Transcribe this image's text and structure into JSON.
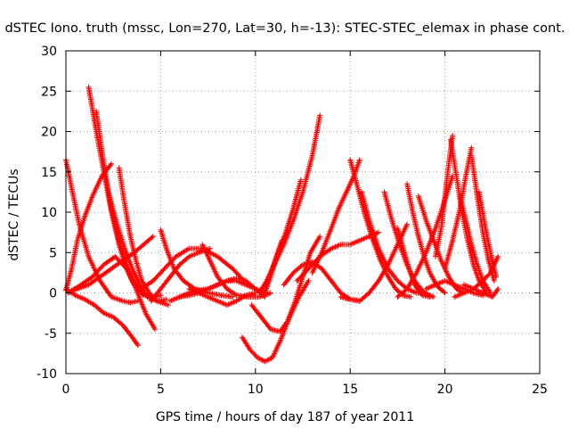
{
  "chart_data": {
    "type": "scatter",
    "title": "dSTEC Iono. truth (mssc, Lon=270, Lat=30, h=-13): STEC-STEC_elemax in phase cont.",
    "xlabel": "GPS time / hours of day 187 of year 2011",
    "ylabel": "dSTEC  / TECUs",
    "xlim": [
      0,
      25
    ],
    "ylim": [
      -10,
      30
    ],
    "xticks": [
      0,
      5,
      10,
      15,
      20,
      25
    ],
    "yticks": [
      -10,
      -5,
      0,
      5,
      10,
      15,
      20,
      25,
      30
    ],
    "grid": true,
    "marker": "+",
    "color": "#ff0000",
    "series": [
      {
        "x": [
          0.0,
          0.3,
          0.7,
          1.2,
          1.8,
          2.4,
          3.0,
          3.4,
          3.8
        ],
        "y": [
          16.5,
          13.0,
          8.5,
          4.5,
          1.5,
          -0.5,
          -1.0,
          -1.2,
          -1.0
        ]
      },
      {
        "x": [
          0.0,
          0.3,
          0.6,
          1.0,
          1.4,
          1.9,
          2.4
        ],
        "y": [
          0.3,
          3.0,
          6.5,
          9.5,
          12.0,
          14.5,
          16.0
        ]
      },
      {
        "x": [
          0.0,
          0.5,
          1.0,
          1.5,
          2.0,
          2.5,
          3.0,
          3.5,
          3.8
        ],
        "y": [
          0.5,
          -0.3,
          -0.8,
          -1.5,
          -2.5,
          -3.0,
          -4.0,
          -5.5,
          -6.5
        ]
      },
      {
        "x": [
          0.1,
          0.6,
          1.2,
          1.8,
          2.4,
          3.0,
          3.6,
          4.1,
          4.6
        ],
        "y": [
          0.0,
          0.5,
          1.0,
          2.0,
          3.0,
          4.0,
          5.0,
          6.0,
          7.0
        ]
      },
      {
        "x": [
          0.3,
          0.8,
          1.4,
          2.0,
          2.6,
          3.2,
          3.7,
          4.2,
          4.7
        ],
        "y": [
          0.3,
          1.0,
          2.0,
          3.5,
          4.5,
          3.0,
          0.5,
          -2.5,
          -4.5
        ]
      },
      {
        "x": [
          1.2,
          1.6,
          2.0,
          2.4,
          2.8,
          3.2,
          3.6,
          4.1,
          4.6,
          5.0
        ],
        "y": [
          25.5,
          20.0,
          15.0,
          10.0,
          6.0,
          3.0,
          1.0,
          -0.3,
          -0.5,
          -0.3
        ]
      },
      {
        "x": [
          1.6,
          2.0,
          2.4,
          2.8,
          3.2,
          3.6,
          4.0,
          4.5
        ],
        "y": [
          22.5,
          16.0,
          10.5,
          6.5,
          3.5,
          1.5,
          0.0,
          -0.5
        ]
      },
      {
        "x": [
          2.3,
          2.7,
          3.1,
          3.5,
          3.9,
          4.3,
          4.8,
          5.3
        ],
        "y": [
          12.0,
          8.5,
          5.5,
          3.0,
          1.0,
          -0.5,
          -1.0,
          -0.8
        ]
      },
      {
        "x": [
          2.8,
          3.1,
          3.4,
          3.7,
          4.0,
          4.4,
          4.8,
          5.4
        ],
        "y": [
          15.5,
          11.0,
          7.0,
          4.0,
          1.5,
          0.0,
          -1.0,
          -1.5
        ]
      },
      {
        "x": [
          4.0,
          4.6,
          5.2,
          5.8,
          6.5,
          7.2,
          8.0,
          8.8,
          9.4
        ],
        "y": [
          0.5,
          1.5,
          3.0,
          4.5,
          5.5,
          5.5,
          4.5,
          3.0,
          1.5
        ]
      },
      {
        "x": [
          4.5,
          5.0,
          5.5,
          6.0,
          6.5,
          7.0,
          7.6
        ],
        "y": [
          -1.0,
          0.5,
          2.0,
          3.5,
          4.5,
          5.0,
          5.5
        ]
      },
      {
        "x": [
          5.0,
          5.3,
          5.7,
          6.2,
          6.8,
          7.5,
          8.2,
          8.8
        ],
        "y": [
          7.8,
          5.5,
          3.0,
          1.5,
          0.5,
          0.0,
          -0.3,
          -0.5
        ]
      },
      {
        "x": [
          5.5,
          6.0,
          6.5,
          7.0,
          7.5,
          8.0,
          8.5,
          9.0,
          9.5,
          10.0,
          10.5
        ],
        "y": [
          -1.0,
          -0.5,
          0.0,
          0.3,
          0.5,
          1.0,
          1.5,
          1.5,
          1.0,
          0.5,
          0.0
        ]
      },
      {
        "x": [
          6.0,
          6.5,
          7.0,
          7.5,
          8.0,
          8.5,
          9.0,
          9.5,
          10.0,
          10.5
        ],
        "y": [
          -0.5,
          -0.3,
          0.0,
          0.5,
          1.0,
          1.5,
          1.8,
          1.5,
          0.5,
          -0.5
        ]
      },
      {
        "x": [
          7.2,
          7.6,
          8.0,
          8.5,
          9.0,
          9.6,
          10.2,
          10.8
        ],
        "y": [
          6.0,
          4.0,
          2.0,
          0.5,
          -0.3,
          -0.5,
          -0.5,
          0.0
        ]
      },
      {
        "x": [
          6.5,
          7.0,
          7.5,
          8.0,
          8.5,
          9.0,
          9.5,
          10.0
        ],
        "y": [
          0.5,
          0.0,
          -0.5,
          -1.0,
          -1.5,
          -1.0,
          -0.3,
          0.0
        ]
      },
      {
        "x": [
          9.3,
          9.7,
          10.1,
          10.5,
          10.9,
          11.3,
          11.8,
          12.3,
          12.8
        ],
        "y": [
          -5.5,
          -7.0,
          -8.0,
          -8.5,
          -8.0,
          -6.0,
          -3.0,
          -0.5,
          1.5
        ]
      },
      {
        "x": [
          9.8,
          10.3,
          10.8,
          11.3,
          11.7,
          12.1,
          12.5,
          12.9,
          13.4
        ],
        "y": [
          -1.5,
          -3.0,
          -4.5,
          -4.8,
          -3.5,
          -1.0,
          2.0,
          5.0,
          7.0
        ]
      },
      {
        "x": [
          10.2,
          10.6,
          11.0,
          11.5,
          12.0,
          12.5,
          13.0,
          13.4
        ],
        "y": [
          0.0,
          1.5,
          3.5,
          6.0,
          9.0,
          12.5,
          17.0,
          22.0
        ]
      },
      {
        "x": [
          10.4,
          10.8,
          11.2,
          11.6,
          12.0,
          12.4
        ],
        "y": [
          0.5,
          2.5,
          5.0,
          7.5,
          10.5,
          14.0
        ]
      },
      {
        "x": [
          10.5,
          10.8,
          11.1,
          11.4
        ],
        "y": [
          0.0,
          2.0,
          4.5,
          6.5
        ]
      },
      {
        "x": [
          11.5,
          12.0,
          12.5,
          13.0,
          13.5,
          14.0,
          14.5,
          15.0,
          15.5
        ],
        "y": [
          1.0,
          2.5,
          3.5,
          3.8,
          3.0,
          1.5,
          0.0,
          -0.8,
          -1.0
        ]
      },
      {
        "x": [
          12.2,
          12.8,
          13.4,
          14.0,
          14.5,
          15.0,
          15.5,
          16.0,
          16.5
        ],
        "y": [
          1.5,
          3.0,
          4.5,
          5.5,
          6.0,
          6.0,
          6.5,
          7.0,
          7.5
        ]
      },
      {
        "x": [
          13.0,
          13.5,
          14.0,
          14.4,
          14.8,
          15.2,
          15.5
        ],
        "y": [
          2.5,
          5.0,
          8.0,
          10.5,
          12.5,
          14.5,
          16.5
        ]
      },
      {
        "x": [
          15.0,
          15.4,
          15.8,
          16.2,
          16.6,
          17.0,
          17.4,
          17.8,
          18.2
        ],
        "y": [
          16.5,
          13.0,
          9.5,
          6.5,
          4.0,
          2.0,
          0.5,
          -0.3,
          -0.5
        ]
      },
      {
        "x": [
          14.5,
          15.0,
          15.5,
          16.0,
          16.5,
          17.0,
          17.5,
          18.0
        ],
        "y": [
          -0.5,
          -0.8,
          -1.0,
          0.0,
          1.5,
          3.5,
          6.0,
          8.5
        ]
      },
      {
        "x": [
          15.6,
          16.0,
          16.5,
          17.0,
          17.5,
          18.0,
          18.5,
          19.0
        ],
        "y": [
          12.5,
          9.0,
          5.5,
          3.0,
          1.5,
          0.5,
          0.0,
          0.0
        ]
      },
      {
        "x": [
          16.8,
          17.2,
          17.6,
          18.0,
          18.4,
          18.9,
          19.4
        ],
        "y": [
          12.5,
          9.0,
          6.0,
          3.5,
          1.5,
          0.0,
          -0.5
        ]
      },
      {
        "x": [
          17.5,
          17.8,
          18.1,
          18.4,
          18.8,
          19.2
        ],
        "y": [
          8.0,
          5.5,
          3.0,
          1.0,
          -0.3,
          -0.5
        ]
      },
      {
        "x": [
          17.5,
          18.0,
          18.5,
          19.0,
          19.5,
          20.0,
          20.4
        ],
        "y": [
          -0.5,
          0.5,
          2.5,
          5.0,
          8.0,
          11.5,
          14.5
        ]
      },
      {
        "x": [
          18.0,
          18.3,
          18.6,
          18.9,
          19.2,
          19.6,
          20.0
        ],
        "y": [
          13.5,
          10.0,
          7.0,
          4.5,
          2.5,
          0.8,
          0.0
        ]
      },
      {
        "x": [
          18.6,
          19.0,
          19.4,
          19.8,
          20.2,
          20.6,
          21.0
        ],
        "y": [
          12.0,
          9.0,
          6.5,
          4.0,
          2.0,
          0.5,
          0.0
        ]
      },
      {
        "x": [
          19.5,
          19.8,
          20.0,
          20.2,
          20.4
        ],
        "y": [
          4.5,
          8.0,
          12.0,
          16.0,
          19.5
        ]
      },
      {
        "x": [
          19.0,
          19.5,
          20.0,
          20.5,
          21.0,
          21.5,
          22.0
        ],
        "y": [
          0.5,
          1.0,
          1.5,
          1.0,
          0.5,
          0.0,
          -0.3
        ]
      },
      {
        "x": [
          20.3,
          20.6,
          20.9,
          21.2,
          21.5,
          21.8,
          22.2
        ],
        "y": [
          19.0,
          14.5,
          10.0,
          6.5,
          3.5,
          1.5,
          0.0
        ]
      },
      {
        "x": [
          20.0,
          20.4,
          20.8,
          21.1,
          21.4
        ],
        "y": [
          3.0,
          6.5,
          10.5,
          14.5,
          18.0
        ]
      },
      {
        "x": [
          20.8,
          21.1,
          21.4,
          21.7,
          22.0,
          22.4
        ],
        "y": [
          12.0,
          9.0,
          6.0,
          3.5,
          1.5,
          0.0
        ]
      },
      {
        "x": [
          21.4,
          21.7,
          22.0,
          22.3,
          22.6
        ],
        "y": [
          17.0,
          12.0,
          7.5,
          4.0,
          1.5
        ]
      },
      {
        "x": [
          21.8,
          22.1,
          22.4,
          22.7
        ],
        "y": [
          12.5,
          8.5,
          5.0,
          2.0
        ]
      },
      {
        "x": [
          20.5,
          21.0,
          21.5,
          22.0,
          22.4,
          22.8
        ],
        "y": [
          -0.5,
          0.0,
          0.5,
          1.5,
          2.5,
          4.5
        ]
      },
      {
        "x": [
          21.0,
          21.5,
          22.0,
          22.5,
          22.8
        ],
        "y": [
          1.0,
          0.5,
          0.0,
          -0.5,
          0.5
        ]
      }
    ]
  }
}
